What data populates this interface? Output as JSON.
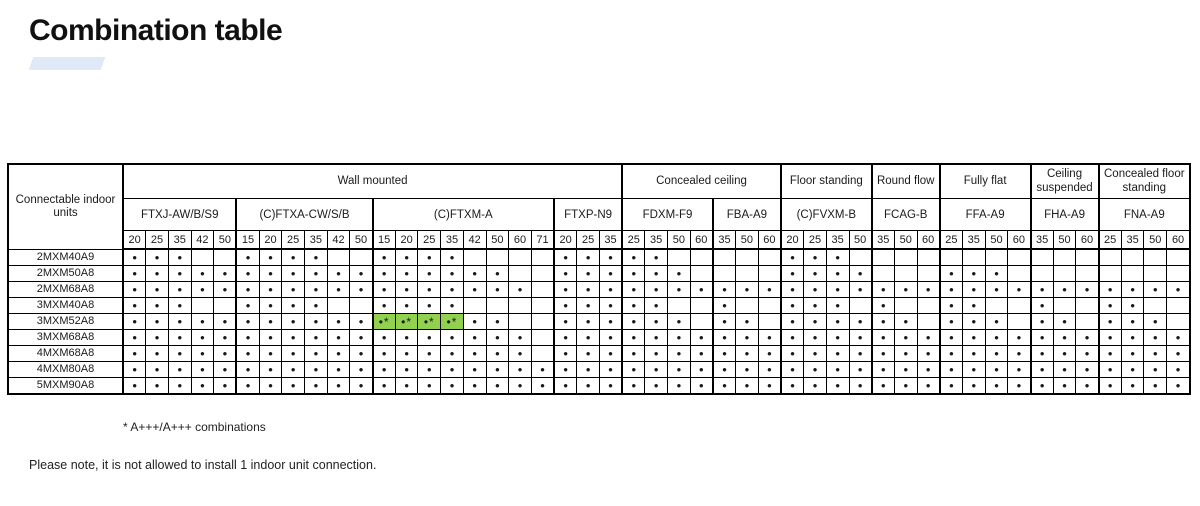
{
  "page": {
    "title": "Combination table",
    "accent_bar_color": "#dfe9f7",
    "footnote_star": "* A+++/A+++ combinations",
    "footnote_note": "Please note, it is not allowed to install 1 indoor unit connection."
  },
  "table": {
    "corner_label": "Connectable indoor units",
    "legend": {
      "dot": "•",
      "dot_star": "•*"
    },
    "highlight_color": "#92d050",
    "groups": [
      {
        "label": "Wall mounted",
        "models": [
          {
            "name": "FTXJ-AW/B/S9",
            "sizes": [
              "20",
              "25",
              "35",
              "42",
              "50"
            ]
          },
          {
            "name": "(C)FTXA-CW/S/B",
            "sizes": [
              "15",
              "20",
              "25",
              "35",
              "42",
              "50"
            ]
          },
          {
            "name": "(C)FTXM-A",
            "sizes": [
              "15",
              "20",
              "25",
              "35",
              "42",
              "50",
              "60",
              "71"
            ]
          },
          {
            "name": "FTXP-N9",
            "sizes": [
              "20",
              "25",
              "35"
            ]
          }
        ]
      },
      {
        "label": "Concealed ceiling",
        "models": [
          {
            "name": "FDXM-F9",
            "sizes": [
              "25",
              "35",
              "50",
              "60"
            ]
          },
          {
            "name": "FBA-A9",
            "sizes": [
              "35",
              "50",
              "60"
            ]
          }
        ]
      },
      {
        "label": "Floor standing",
        "models": [
          {
            "name": "(C)FVXM-B",
            "sizes": [
              "20",
              "25",
              "35",
              "50"
            ]
          }
        ]
      },
      {
        "label": "Round flow",
        "models": [
          {
            "name": "FCAG-B",
            "sizes": [
              "35",
              "50",
              "60"
            ]
          }
        ]
      },
      {
        "label": "Fully flat",
        "models": [
          {
            "name": "FFA-A9",
            "sizes": [
              "25",
              "35",
              "50",
              "60"
            ]
          }
        ]
      },
      {
        "label": "Ceiling suspended",
        "models": [
          {
            "name": "FHA-A9",
            "sizes": [
              "35",
              "50",
              "60"
            ]
          }
        ]
      },
      {
        "label": "Concealed floor standing",
        "models": [
          {
            "name": "FNA-A9",
            "sizes": [
              "25",
              "35",
              "50",
              "60"
            ]
          }
        ]
      }
    ],
    "rows": [
      {
        "label": "2MXM40A9",
        "marks": [
          "11100",
          "111100",
          "11110000",
          "111",
          "1100",
          "000",
          "1110",
          "000",
          "0000",
          "000",
          "0000"
        ]
      },
      {
        "label": "2MXM50A8",
        "marks": [
          "11111",
          "111111",
          "11111100",
          "111",
          "1110",
          "000",
          "1111",
          "000",
          "1110",
          "000",
          "0000"
        ]
      },
      {
        "label": "2MXM68A8",
        "marks": [
          "11111",
          "111111",
          "11111110",
          "111",
          "1111",
          "111",
          "1111",
          "111",
          "1111",
          "111",
          "1111"
        ]
      },
      {
        "label": "3MXM40A8",
        "marks": [
          "11100",
          "111100",
          "11110000",
          "111",
          "1100",
          "100",
          "1110",
          "100",
          "1100",
          "100",
          "1100"
        ]
      },
      {
        "label": "3MXM52A8",
        "marks": [
          "11111",
          "111111",
          "22221100",
          "111",
          "1110",
          "110",
          "1111",
          "110",
          "1110",
          "110",
          "1110"
        ]
      },
      {
        "label": "3MXM68A8",
        "marks": [
          "11111",
          "111111",
          "11111110",
          "111",
          "1111",
          "111",
          "1111",
          "111",
          "1111",
          "111",
          "1111"
        ]
      },
      {
        "label": "4MXM68A8",
        "marks": [
          "11111",
          "111111",
          "11111110",
          "111",
          "1111",
          "111",
          "1111",
          "111",
          "1111",
          "111",
          "1111"
        ]
      },
      {
        "label": "4MXM80A8",
        "marks": [
          "11111",
          "111111",
          "11111111",
          "111",
          "1111",
          "111",
          "1111",
          "111",
          "1111",
          "111",
          "1111"
        ]
      },
      {
        "label": "5MXM90A8",
        "marks": [
          "11111",
          "111111",
          "11111111",
          "111",
          "1111",
          "111",
          "1111",
          "111",
          "1111",
          "111",
          "1111"
        ]
      }
    ]
  }
}
